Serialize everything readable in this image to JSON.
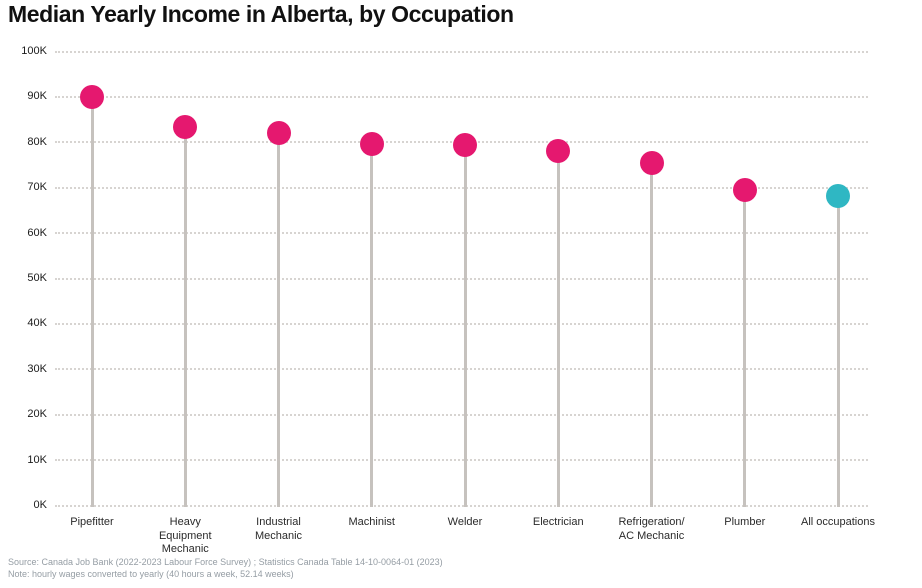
{
  "title": "Median Yearly Income in Alberta, by Occupation",
  "footer": {
    "source_line": "Source: Canada Job Bank (2022-2023 Labour Force Survey) ; Statistics Canada Table 14-10-0064-01 (2023)",
    "note_line": "Note: hourly wages converted to yearly (40 hours a week, 52.14 weeks)"
  },
  "colors": {
    "occupation_dot": "#E5186F",
    "highlight_dot": "#2FB7C3",
    "stem": "#C6C2BE",
    "gridline": "#D7D4D1",
    "title_text": "#111111",
    "axis_text": "#1A1A1A",
    "category_text": "#2A2A2A",
    "footer_text": "#959DA4"
  },
  "chart_data": {
    "type": "scatter",
    "variant": "lollipop",
    "title": "Median Yearly Income in Alberta, by Occupation",
    "categories": [
      "Pipefitter",
      "Heavy Equipment Mechanic",
      "Industrial Mechanic",
      "Machinist",
      "Welder",
      "Electrician",
      "Refrigeration/ AC Mechanic",
      "Plumber",
      "All occupations"
    ],
    "values": [
      89900,
      83400,
      82000,
      79600,
      79500,
      78100,
      75400,
      69600,
      68200
    ],
    "highlight_category": "All occupations",
    "highlight_meaning": "All occupations shown in teal; individual trades in pink",
    "xlabel": "",
    "ylabel": "",
    "ylim": [
      0,
      100000
    ],
    "ytick_step": 10000,
    "ytick_labels": [
      "0K",
      "10K",
      "20K",
      "30K",
      "40K",
      "50K",
      "60K",
      "70K",
      "80K",
      "90K",
      "100K"
    ],
    "grid": "horizontal dotted",
    "legend": "none"
  }
}
